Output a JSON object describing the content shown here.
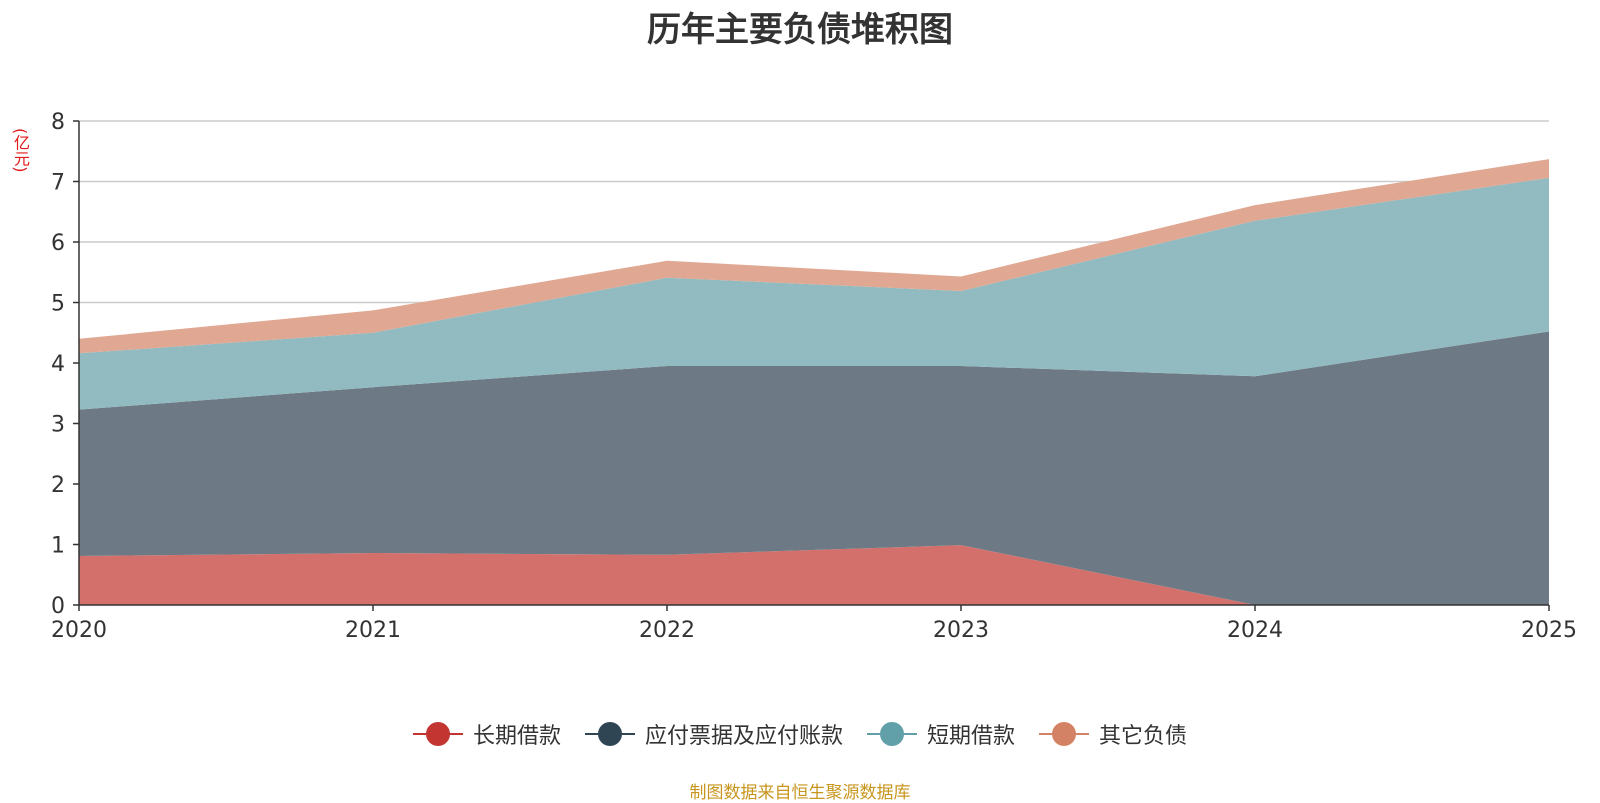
{
  "chart_data": {
    "type": "area",
    "stacked": true,
    "title": "历年主要负债堆积图",
    "unit": "(亿元)",
    "x": [
      "2020",
      "2021",
      "2022",
      "2023",
      "2024",
      "2025"
    ],
    "ylim": [
      0,
      8
    ],
    "yticks": [
      "0",
      "1",
      "2",
      "3",
      "4",
      "5",
      "6",
      "7",
      "8"
    ],
    "grid": true,
    "legend_position": "bottom",
    "series": [
      {
        "name": "长期借款",
        "color": "#c23531",
        "fill": "#d4706c",
        "values": [
          0.81,
          0.86,
          0.83,
          0.99,
          0.0,
          0.0
        ]
      },
      {
        "name": "应付票据及应付账款",
        "color": "#2f4554",
        "fill": "#6d7a85",
        "values": [
          2.42,
          2.74,
          3.12,
          2.96,
          3.78,
          4.52
        ]
      },
      {
        "name": "短期借款",
        "color": "#61a0a8",
        "fill": "#92bbc1",
        "values": [
          0.93,
          0.9,
          1.46,
          1.24,
          2.57,
          2.54
        ]
      },
      {
        "name": "其它负债",
        "color": "#d48265",
        "fill": "#e0a792",
        "values": [
          0.24,
          0.37,
          0.28,
          0.24,
          0.26,
          0.31
        ]
      }
    ]
  },
  "source_note": "制图数据来自恒生聚源数据库"
}
